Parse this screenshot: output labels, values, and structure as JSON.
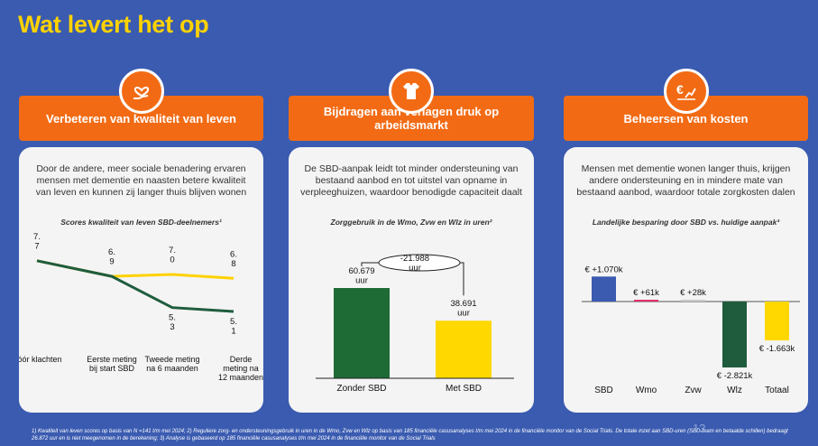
{
  "page": {
    "title": "Wat levert het op"
  },
  "panels": [
    {
      "header": "Verbeteren van kwaliteit van leven",
      "icon": "heart-hand-icon",
      "description": "Door de andere, meer sociale benadering ervaren mensen met dementie en naasten betere kwaliteit van leven en kunnen zij langer thuis blijven wonen",
      "chart_title": "Scores kwaliteit van leven SBD-deelnemers¹"
    },
    {
      "header": "Bijdragen aan verlagen druk op arbeidsmarkt",
      "icon": "shirt-icon",
      "description": "De SBD-aanpak leidt tot minder ondersteuning van bestaand aanbod en tot uitstel van opname in verpleeghuizen, waardoor benodigde capaciteit daalt",
      "chart_title": "Zorggebruik in de Wmo, Zvw en Wlz in uren²"
    },
    {
      "header": "Beheersen van kosten",
      "icon": "euro-growth-icon",
      "description": "Mensen met dementie wonen langer thuis, krijgen andere ondersteuning en in mindere mate van bestaand aanbod, waardoor totale zorgkosten dalen",
      "chart_title": "Landelijke besparing door SBD vs. huidige aanpak³"
    }
  ],
  "chart_data": [
    {
      "type": "line",
      "categories": [
        "Vóór klachten",
        "Eerste meting bij start SBD",
        "Tweede meting na 6 maanden",
        "Derde meting na 12 maanden"
      ],
      "series": [
        {
          "values": [
            7.7,
            6.9,
            7.0,
            6.8
          ],
          "color": "#ffd200",
          "labels": [
            "7.\n7",
            "6.\n9",
            "7.\n0",
            "6.\n8"
          ]
        },
        {
          "values": [
            7.7,
            6.9,
            5.3,
            5.1
          ],
          "color": "#1f5c3e",
          "labels": [
            "",
            "",
            "5.\n3",
            "5.\n1"
          ]
        }
      ]
    },
    {
      "type": "bar",
      "categories": [
        "Zonder SBD",
        "Met SBD"
      ],
      "values": [
        60679,
        38691
      ],
      "value_labels": [
        "60.679\nuur",
        "38.691\nuur"
      ],
      "difference_label": "-21.988\nuur",
      "colors": [
        "#1f6b35",
        "#ffd800"
      ]
    },
    {
      "type": "bar",
      "categories": [
        "SBD",
        "Wmo",
        "Zvw",
        "Wlz",
        "Totaal"
      ],
      "values": [
        1070,
        61,
        28,
        -2821,
        -1663
      ],
      "value_labels": [
        "€ +1.070k",
        "€ +61k",
        "€ +28k",
        "€ -2.821k",
        "€ -1.663k"
      ],
      "colors": [
        "#3a5bb0",
        "#e0306a",
        "#c8c8c8",
        "#1f5c3e",
        "#ffd800"
      ]
    }
  ],
  "footnote": "1) Kwaliteit van leven scores op basis van N =141 t/m mei 2024; 2) Reguliere zorg- en ondersteuningsgebruik in uren in de Wmo, Zvw en Wlz op basis van 185 financiële casusanalyses t/m mei 2024 in de financiële monitor van de Social Trials. De totale inzet aan SBD-uren (SBD-team en betaalde schillen) bedraagt 26.872 uur en is niet meegenomen in de berekening; 3) Analyse is gebaseerd op 185 financiële casusanalyses t/m mei 2024 in de financiële monitor van de Social Trials",
  "page_number": "13"
}
